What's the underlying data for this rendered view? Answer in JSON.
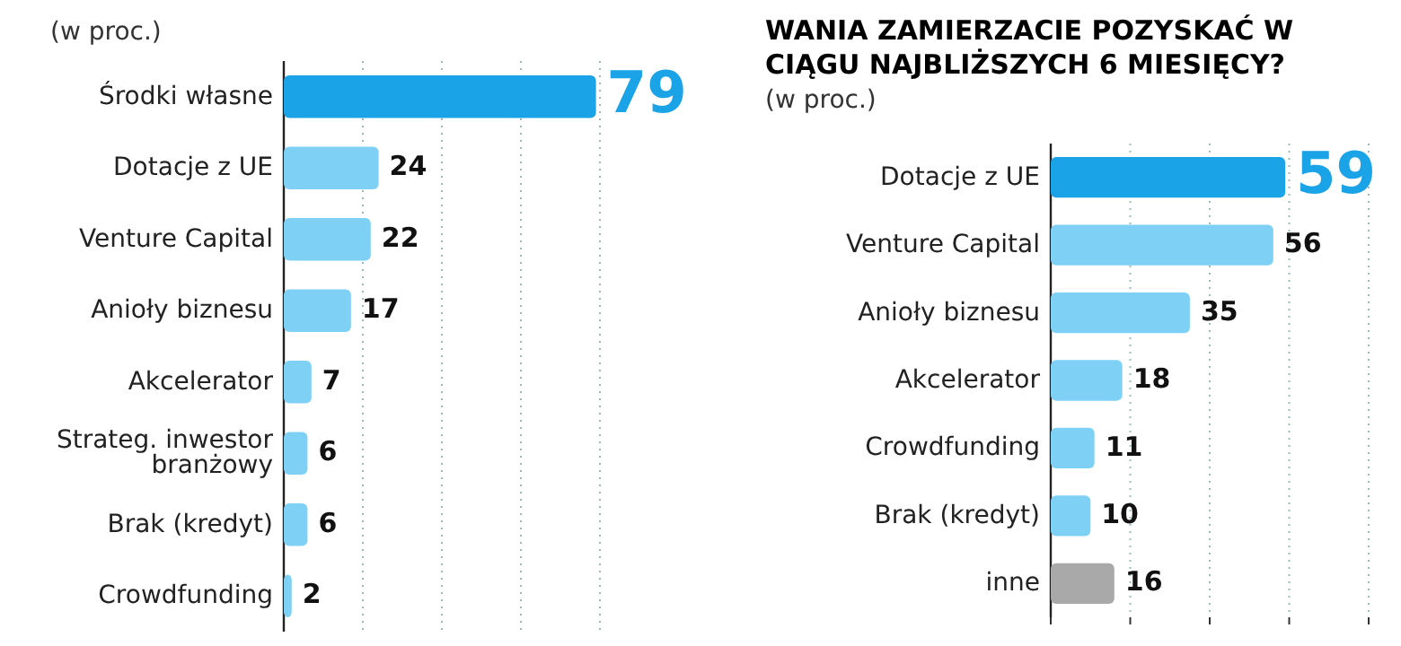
{
  "chart_data": [
    {
      "type": "bar",
      "orientation": "horizontal",
      "subtitle": "(w proc.)",
      "categories": [
        "Środki własne",
        "Dotacje z UE",
        "Venture Capital",
        "Anioły biznesu",
        "Akcelerator",
        "Strateg. inwestor branżowy",
        "Brak (kredyt)",
        "Crowdfunding"
      ],
      "values": [
        79,
        24,
        22,
        17,
        7,
        6,
        6,
        2
      ],
      "colors": [
        "#1aa3e6",
        "#7fd0f5",
        "#7fd0f5",
        "#7fd0f5",
        "#7fd0f5",
        "#7fd0f5",
        "#7fd0f5",
        "#7fd0f5"
      ],
      "xlim": [
        0,
        80
      ],
      "xticks": [
        {
          "value": 0,
          "label": null
        },
        {
          "value": 20,
          "label": null
        },
        {
          "value": 40,
          "label": null
        },
        {
          "value": 60,
          "label": null
        },
        {
          "value": 80,
          "label": null
        }
      ],
      "grid": "x",
      "data_labels": true
    },
    {
      "type": "bar",
      "orientation": "horizontal",
      "title": "WANIA ZAMIERZACIE POZYSKAĆ W CIĄGU NAJBLIŻSZYCH 6 MIESIĘCY?",
      "subtitle": "(w proc.)",
      "categories": [
        "Dotacje z UE",
        "Venture Capital",
        "Anioły biznesu",
        "Akcelerator",
        "Crowdfunding",
        "Brak (kredyt)",
        "inne"
      ],
      "values": [
        59,
        56,
        35,
        18,
        11,
        10,
        16
      ],
      "colors": [
        "#1aa3e6",
        "#7fd0f5",
        "#7fd0f5",
        "#7fd0f5",
        "#7fd0f5",
        "#7fd0f5",
        "#a9a9a9"
      ],
      "xlim": [
        0,
        80
      ],
      "xticks": [
        {
          "value": 0,
          "label": null
        },
        {
          "value": 20,
          "label": null
        },
        {
          "value": 40,
          "label": null
        },
        {
          "value": 60,
          "label": null
        },
        {
          "value": 80,
          "label": null
        }
      ],
      "grid": "x",
      "data_labels": true
    }
  ]
}
